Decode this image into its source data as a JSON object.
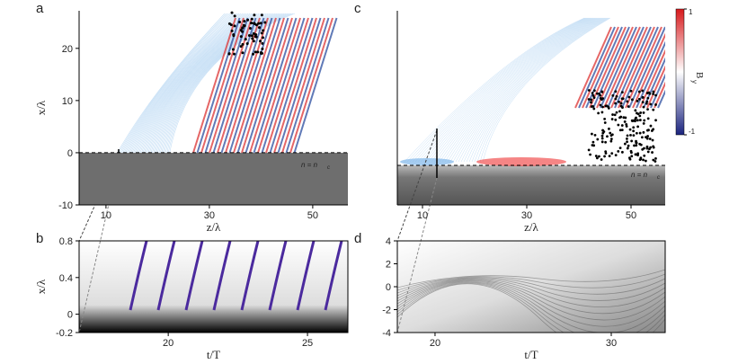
{
  "chart_data": [
    {
      "type": "heatmap",
      "panel_label": "a",
      "xlabel": "z/λ",
      "ylabel": "x/λ",
      "xlim": [
        4.8,
        56.8
      ],
      "ylim": [
        -10,
        27.2
      ],
      "xticks": [
        10,
        30,
        50
      ],
      "yticks": [
        -10,
        0,
        10,
        20
      ],
      "annotation": {
        "text": "n = n",
        "sub": "c"
      }
    },
    {
      "type": "heatmap",
      "panel_label": "b",
      "xlabel": "t/T",
      "ylabel": "x/λ",
      "xlim": [
        16.8,
        26.45
      ],
      "ylim": [
        -0.2,
        0.8
      ],
      "xticks": [
        20,
        25
      ],
      "yticks": [
        -0.2,
        0,
        0.4,
        0.8
      ]
    },
    {
      "type": "heatmap",
      "panel_label": "c",
      "xlabel": "z/λ",
      "xlim": [
        5.17,
        56.55
      ],
      "ylim": [
        -10,
        27.2
      ],
      "xticks": [
        10,
        30,
        50
      ],
      "annotation": {
        "text": "n = n",
        "sub": "c"
      },
      "colorbar": {
        "label": "B",
        "sub": "y",
        "lim": [
          -1,
          1
        ],
        "ticks": [
          -1,
          1
        ]
      }
    },
    {
      "type": "heatmap",
      "panel_label": "d",
      "xlabel": "t/T",
      "xlim": [
        17.86,
        33.06
      ],
      "ylim": [
        -4,
        4
      ],
      "xticks": [
        20,
        30
      ],
      "yticks": [
        -4,
        -2,
        0,
        2,
        4
      ]
    }
  ]
}
